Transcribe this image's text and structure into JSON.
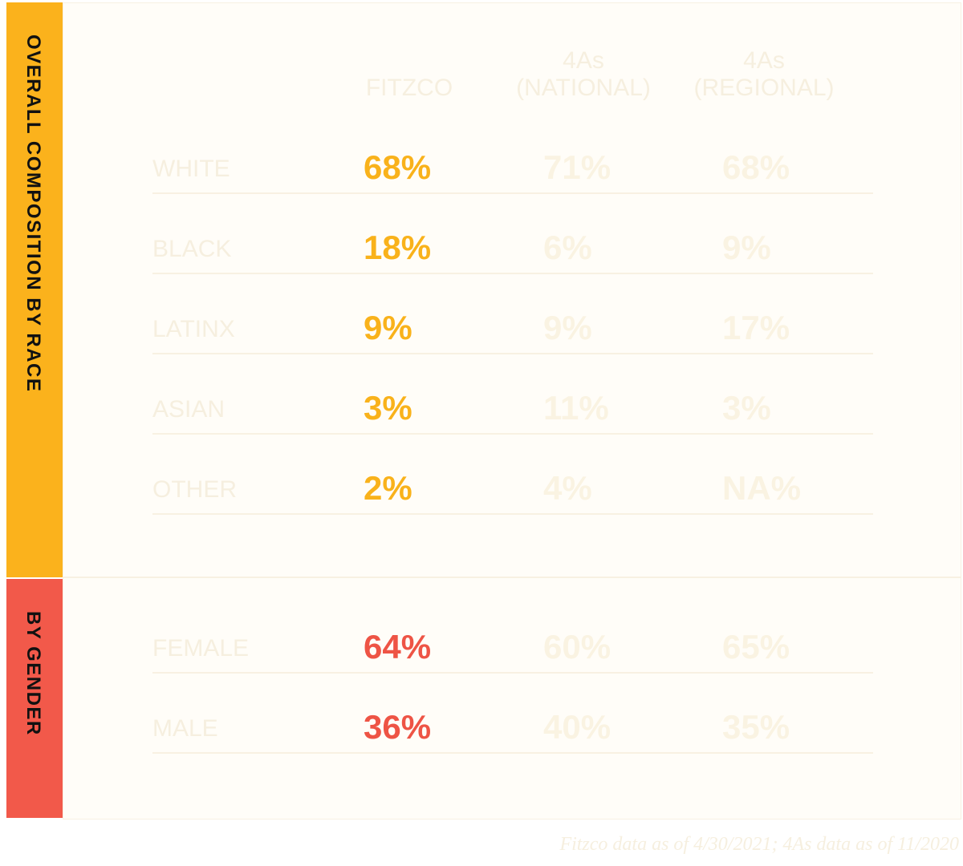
{
  "columns": [
    [
      "FITZCO"
    ],
    [
      "4As",
      "(NATIONAL)"
    ],
    [
      "4As",
      "(REGIONAL)"
    ]
  ],
  "sections": [
    {
      "title": "OVERALL COMPOSITION BY RACE",
      "rows": [
        {
          "label": "WHITE",
          "values": [
            "68%",
            "71%",
            "68%"
          ]
        },
        {
          "label": "BLACK",
          "values": [
            "18%",
            "6%",
            "9%"
          ]
        },
        {
          "label": "LATINX",
          "values": [
            "9%",
            "9%",
            "17%"
          ]
        },
        {
          "label": "ASIAN",
          "values": [
            "3%",
            "11%",
            "3%"
          ]
        },
        {
          "label": "OTHER",
          "values": [
            "2%",
            "4%",
            "NA%"
          ]
        }
      ]
    },
    {
      "title": "BY GENDER",
      "rows": [
        {
          "label": "FEMALE",
          "values": [
            "64%",
            "60%",
            "65%"
          ]
        },
        {
          "label": "MALE",
          "values": [
            "36%",
            "40%",
            "35%"
          ]
        }
      ]
    }
  ],
  "footnote": "Fitzco data as of 4/30/2021; 4As data as of 11/2020"
}
